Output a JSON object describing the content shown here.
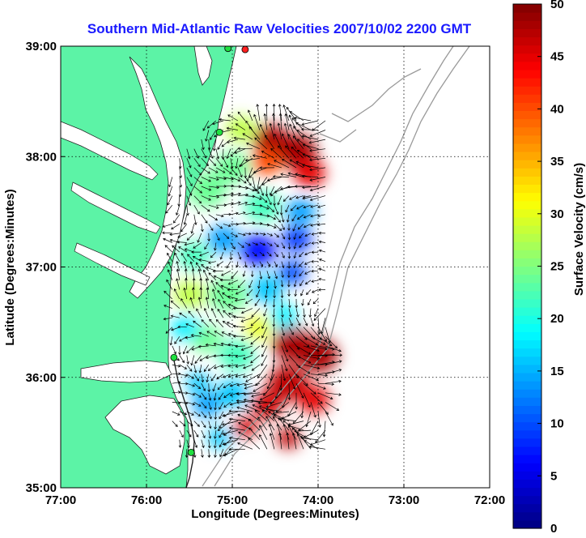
{
  "chart_data": {
    "type": "heatmap",
    "title": "Southern Mid-Atlantic Raw Velocities 2007/10/02 2200 GMT",
    "xlabel": "Longitude (Degrees:Minutes)",
    "ylabel": "Latitude (Degrees:Minutes)",
    "xlim": [
      -77,
      -72
    ],
    "ylim": [
      35,
      39
    ],
    "x_ticks": [
      {
        "value": -77,
        "label": "77:00"
      },
      {
        "value": -76,
        "label": "76:00"
      },
      {
        "value": -75,
        "label": "75:00"
      },
      {
        "value": -74,
        "label": "74:00"
      },
      {
        "value": -73,
        "label": "73:00"
      },
      {
        "value": -72,
        "label": "72:00"
      }
    ],
    "y_ticks": [
      {
        "value": 35,
        "label": "35:00"
      },
      {
        "value": 36,
        "label": "36:00"
      },
      {
        "value": 37,
        "label": "37:00"
      },
      {
        "value": 38,
        "label": "38:00"
      },
      {
        "value": 39,
        "label": "39:00"
      }
    ],
    "grid": "dotted",
    "colorbar": {
      "label": "Surface Velocity (cm/s)",
      "min": 0,
      "max": 50,
      "ticks": [
        "0",
        "5",
        "10",
        "15",
        "20",
        "25",
        "30",
        "35",
        "40",
        "45",
        "50"
      ],
      "colormap": "jet",
      "placement": "right"
    },
    "land_color": "#5cf3a6",
    "field": [
      {
        "lon": -74.55,
        "lat": 38.15,
        "v": 48,
        "r": 0.18
      },
      {
        "lon": -74.25,
        "lat": 38.05,
        "v": 48,
        "r": 0.2
      },
      {
        "lon": -74.1,
        "lat": 37.85,
        "v": 45,
        "r": 0.16
      },
      {
        "lon": -74.6,
        "lat": 37.95,
        "v": 40,
        "r": 0.15
      },
      {
        "lon": -74.9,
        "lat": 38.25,
        "v": 28,
        "r": 0.15
      },
      {
        "lon": -75.0,
        "lat": 37.9,
        "v": 24,
        "r": 0.18
      },
      {
        "lon": -75.3,
        "lat": 37.7,
        "v": 24,
        "r": 0.2
      },
      {
        "lon": -74.65,
        "lat": 37.55,
        "v": 22,
        "r": 0.18
      },
      {
        "lon": -74.2,
        "lat": 37.5,
        "v": 14,
        "r": 0.15
      },
      {
        "lon": -74.25,
        "lat": 37.25,
        "v": 9,
        "r": 0.15
      },
      {
        "lon": -74.7,
        "lat": 37.15,
        "v": 7,
        "r": 0.18
      },
      {
        "lon": -74.3,
        "lat": 36.95,
        "v": 10,
        "r": 0.14
      },
      {
        "lon": -75.1,
        "lat": 37.25,
        "v": 14,
        "r": 0.16
      },
      {
        "lon": -75.45,
        "lat": 37.1,
        "v": 22,
        "r": 0.16
      },
      {
        "lon": -75.5,
        "lat": 36.75,
        "v": 28,
        "r": 0.16
      },
      {
        "lon": -75.05,
        "lat": 36.75,
        "v": 24,
        "r": 0.2
      },
      {
        "lon": -74.6,
        "lat": 36.8,
        "v": 16,
        "r": 0.16
      },
      {
        "lon": -74.4,
        "lat": 36.55,
        "v": 18,
        "r": 0.14
      },
      {
        "lon": -74.7,
        "lat": 36.45,
        "v": 30,
        "r": 0.14
      },
      {
        "lon": -74.3,
        "lat": 36.3,
        "v": 48,
        "r": 0.2
      },
      {
        "lon": -74.0,
        "lat": 36.2,
        "v": 48,
        "r": 0.2
      },
      {
        "lon": -74.35,
        "lat": 35.95,
        "v": 47,
        "r": 0.2
      },
      {
        "lon": -74.05,
        "lat": 35.8,
        "v": 45,
        "r": 0.16
      },
      {
        "lon": -74.6,
        "lat": 35.75,
        "v": 46,
        "r": 0.16
      },
      {
        "lon": -74.85,
        "lat": 35.55,
        "v": 46,
        "r": 0.12
      },
      {
        "lon": -74.35,
        "lat": 35.45,
        "v": 47,
        "r": 0.12
      },
      {
        "lon": -74.95,
        "lat": 36.2,
        "v": 22,
        "r": 0.18
      },
      {
        "lon": -75.3,
        "lat": 36.35,
        "v": 24,
        "r": 0.16
      },
      {
        "lon": -75.55,
        "lat": 36.45,
        "v": 18,
        "r": 0.14
      },
      {
        "lon": -75.0,
        "lat": 35.85,
        "v": 16,
        "r": 0.16
      },
      {
        "lon": -75.3,
        "lat": 35.75,
        "v": 14,
        "r": 0.14
      },
      {
        "lon": -75.15,
        "lat": 35.45,
        "v": 16,
        "r": 0.12
      },
      {
        "lon": -75.4,
        "lat": 35.95,
        "v": 16,
        "r": 0.12
      }
    ],
    "stations": [
      {
        "lon": -74.85,
        "lat": 38.97,
        "color": "#ff2020"
      },
      {
        "lon": -75.05,
        "lat": 38.98,
        "color": "#20e040"
      },
      {
        "lon": -75.15,
        "lat": 38.22,
        "color": "#20e040"
      },
      {
        "lon": -75.68,
        "lat": 36.18,
        "color": "#20e040"
      },
      {
        "lon": -75.48,
        "lat": 35.32,
        "color": "#20e040"
      }
    ]
  }
}
